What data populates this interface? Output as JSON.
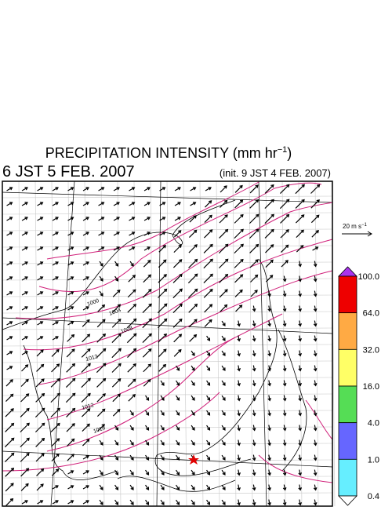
{
  "header": {
    "title": "PRECIPITATION INTENSITY (mm hr",
    "title_exp": "−1",
    "title_end": ")",
    "valid_time": "6 JST 5 FEB. 2007",
    "init_time": "(init. 9 JST 4 FEB. 2007)"
  },
  "vector_scale": {
    "label": "20 m s",
    "label_exp": "−1"
  },
  "colorbar": {
    "labels": [
      "100.0",
      "64.0",
      "32.0",
      "16.0",
      "4.0",
      "1.0",
      "0.4"
    ],
    "colors": [
      "#ee0000",
      "#ffaa44",
      "#ffff66",
      "#55dd55",
      "#6666ff",
      "#66eeff"
    ],
    "over_color": "#aa33ee",
    "under_color": "#ffffff"
  },
  "isobar_labels": [
    "1000",
    "1004",
    "1008",
    "1012",
    "1012",
    "1016"
  ]
}
